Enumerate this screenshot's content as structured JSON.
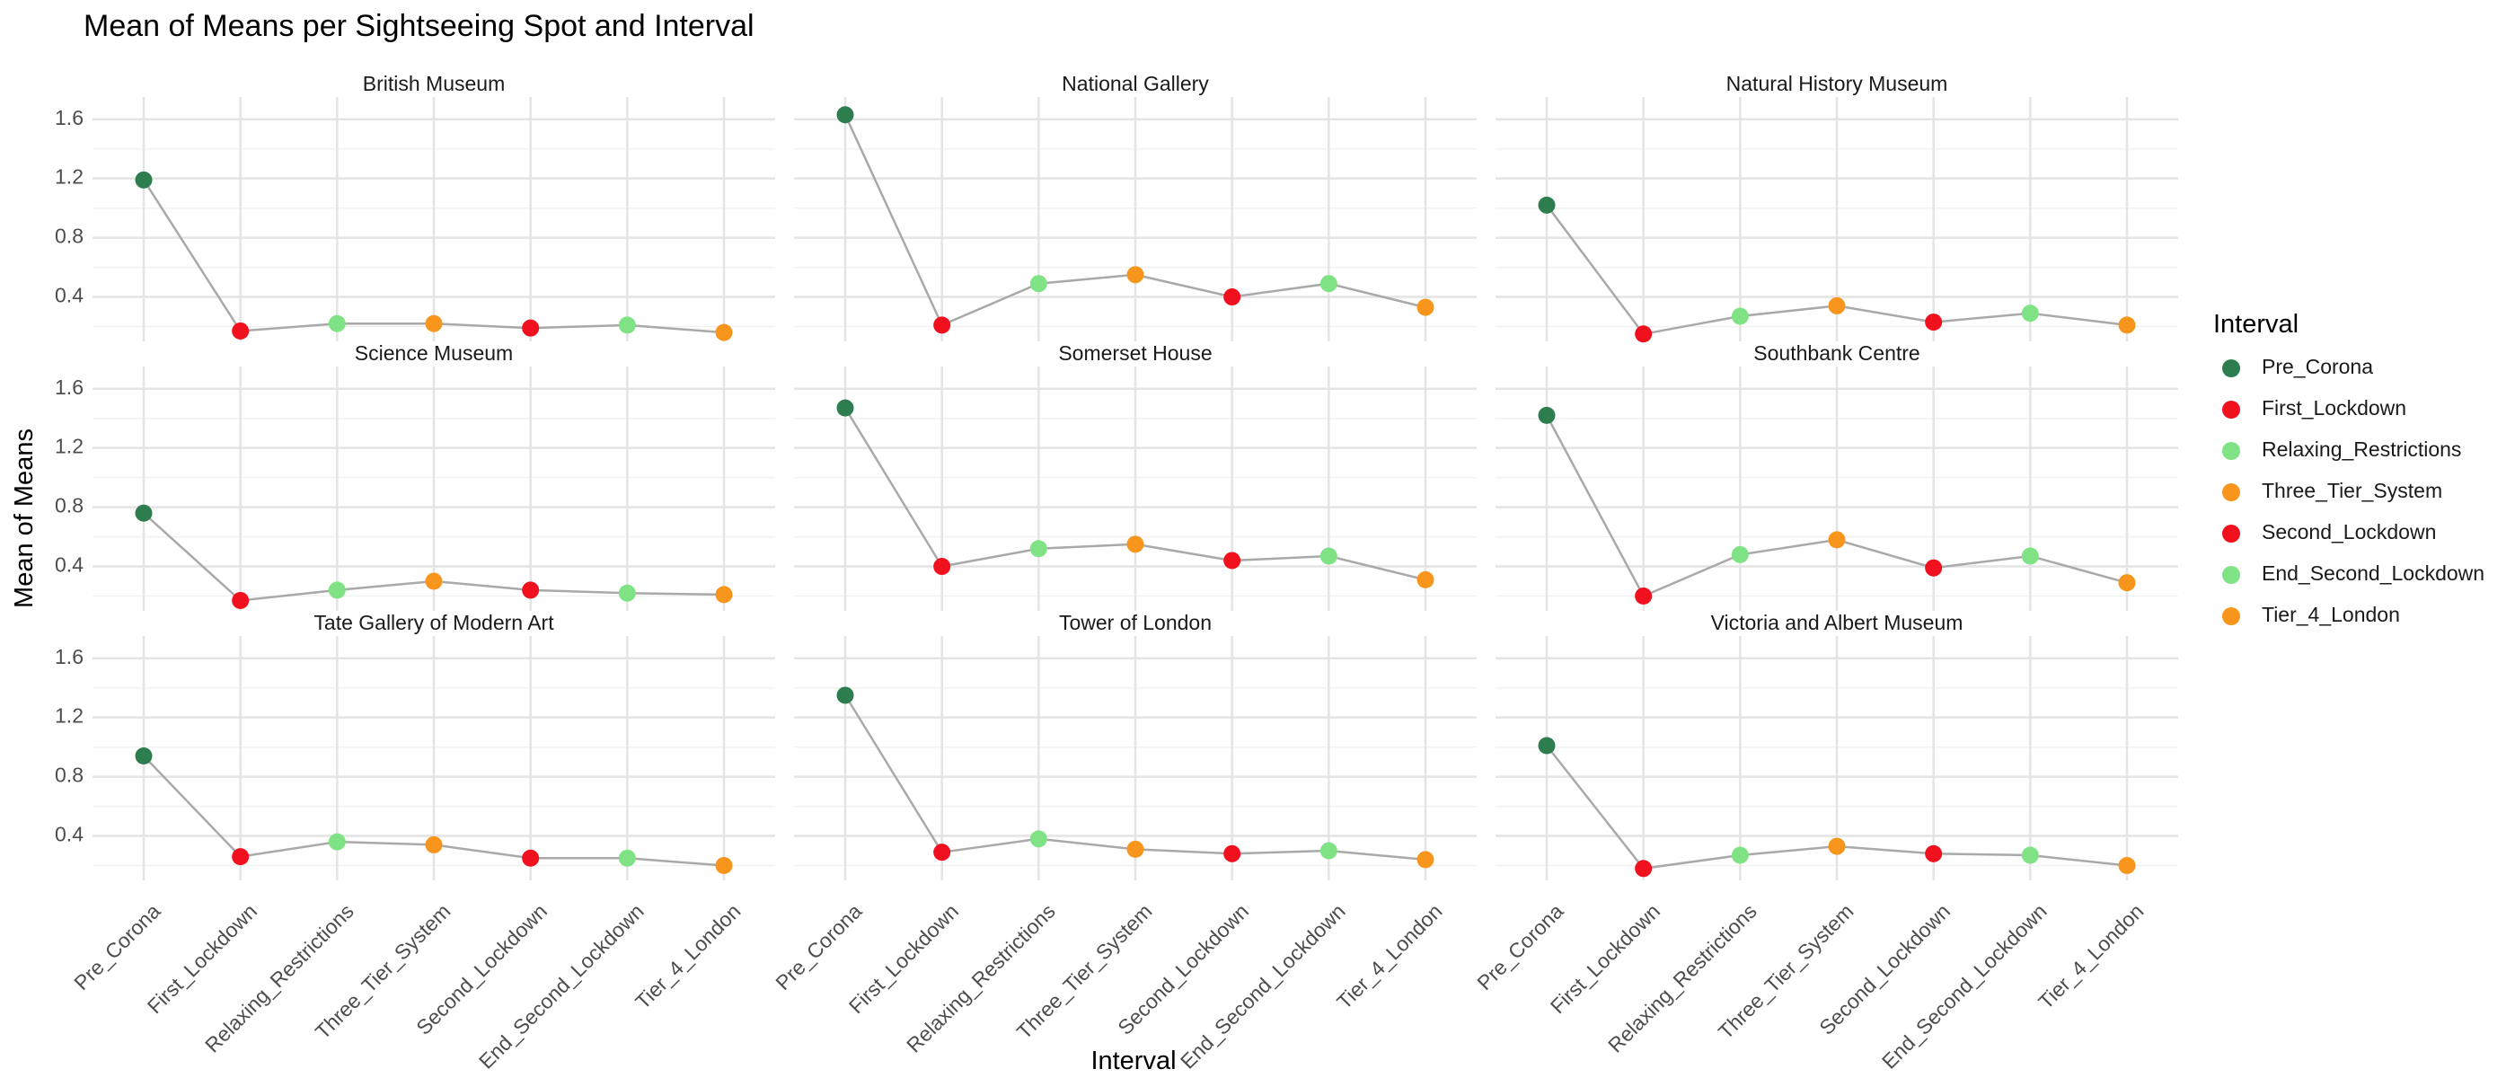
{
  "chart_data": {
    "type": "scatter",
    "title": "Mean of Means per Sightseeing Spot and Interval",
    "xlabel": "Interval",
    "ylabel": "Mean of Means",
    "ylim": [
      0.1,
      1.75
    ],
    "yticks": [
      0.4,
      0.8,
      1.2,
      1.6
    ],
    "ytick_labels": [
      "0.4",
      "0.8",
      "1.2",
      "1.6"
    ],
    "grid": true,
    "categories": [
      "Pre_Corona",
      "First_Lockdown",
      "Relaxing_Restrictions",
      "Three_Tier_System",
      "Second_Lockdown",
      "End_Second_Lockdown",
      "Tier_4_London"
    ],
    "legend": {
      "title": "Interval",
      "position": "right",
      "entries": [
        {
          "label": "Pre_Corona",
          "color": "#2e7d4f"
        },
        {
          "label": "First_Lockdown",
          "color": "#f0101e"
        },
        {
          "label": "Relaxing_Restrictions",
          "color": "#7fe386"
        },
        {
          "label": "Three_Tier_System",
          "color": "#f8951d"
        },
        {
          "label": "Second_Lockdown",
          "color": "#f0101e"
        },
        {
          "label": "End_Second_Lockdown",
          "color": "#7fe386"
        },
        {
          "label": "Tier_4_London",
          "color": "#f8951d"
        }
      ]
    },
    "line_color": "#a9a9a9",
    "panels": [
      {
        "name": "British Museum",
        "values": [
          1.19,
          0.17,
          0.22,
          0.22,
          0.19,
          0.21,
          0.16
        ]
      },
      {
        "name": "National Gallery",
        "values": [
          1.63,
          0.21,
          0.49,
          0.55,
          0.4,
          0.49,
          0.33
        ]
      },
      {
        "name": "Natural History Museum",
        "values": [
          1.02,
          0.15,
          0.27,
          0.34,
          0.23,
          0.29,
          0.21
        ]
      },
      {
        "name": "Science Museum",
        "values": [
          0.76,
          0.17,
          0.24,
          0.3,
          0.24,
          0.22,
          0.21
        ]
      },
      {
        "name": "Somerset House",
        "values": [
          1.47,
          0.4,
          0.52,
          0.55,
          0.44,
          0.47,
          0.31
        ]
      },
      {
        "name": "Southbank Centre",
        "values": [
          1.42,
          0.2,
          0.48,
          0.58,
          0.39,
          0.47,
          0.29
        ]
      },
      {
        "name": "Tate Gallery of Modern Art",
        "values": [
          0.94,
          0.26,
          0.36,
          0.34,
          0.25,
          0.25,
          0.2
        ]
      },
      {
        "name": "Tower of London",
        "values": [
          1.35,
          0.29,
          0.38,
          0.31,
          0.28,
          0.3,
          0.24
        ]
      },
      {
        "name": "Victoria and Albert Museum",
        "values": [
          1.01,
          0.18,
          0.27,
          0.33,
          0.28,
          0.27,
          0.2
        ]
      }
    ]
  }
}
